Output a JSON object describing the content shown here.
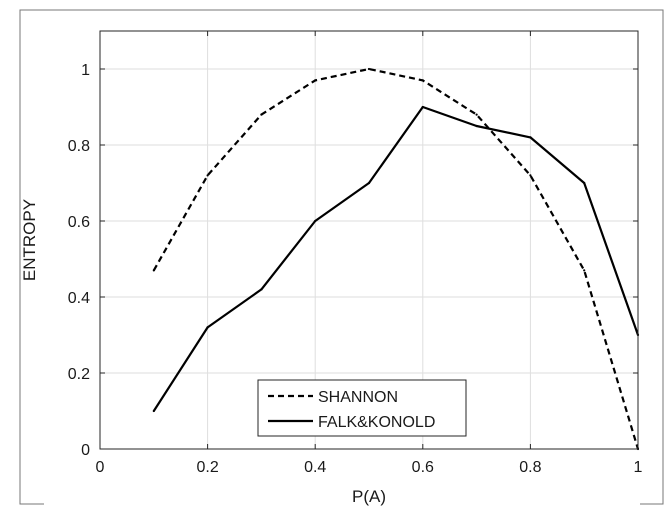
{
  "chart_data": {
    "type": "line",
    "xlabel": "P(A)",
    "ylabel": "ENTROPY",
    "xlim": [
      0,
      1
    ],
    "ylim": [
      0,
      1.1
    ],
    "xticks": [
      0,
      0.2,
      0.4,
      0.6,
      0.8,
      1
    ],
    "yticks": [
      0,
      0.2,
      0.4,
      0.6,
      0.8,
      1
    ],
    "xtick_labels": [
      "0",
      "0.2",
      "0.4",
      "0.6",
      "0.8",
      "1"
    ],
    "ytick_labels": [
      "0",
      "0.2",
      "0.4",
      "0.6",
      "0.8",
      "1"
    ],
    "grid": true,
    "legend_position": "bottom-center",
    "series": [
      {
        "name": "SHANNON",
        "style": "dashed",
        "color": "#000000",
        "x": [
          0.1,
          0.2,
          0.3,
          0.4,
          0.5,
          0.6,
          0.7,
          0.8,
          0.9,
          1.0
        ],
        "y": [
          0.47,
          0.72,
          0.88,
          0.97,
          1.0,
          0.97,
          0.88,
          0.72,
          0.47,
          0.0
        ]
      },
      {
        "name": "FALK&KONOLD",
        "style": "solid",
        "color": "#000000",
        "x": [
          0.1,
          0.2,
          0.3,
          0.4,
          0.5,
          0.6,
          0.7,
          0.8,
          0.9,
          1.0
        ],
        "y": [
          0.1,
          0.32,
          0.42,
          0.6,
          0.7,
          0.9,
          0.85,
          0.82,
          0.7,
          0.3
        ]
      }
    ]
  }
}
